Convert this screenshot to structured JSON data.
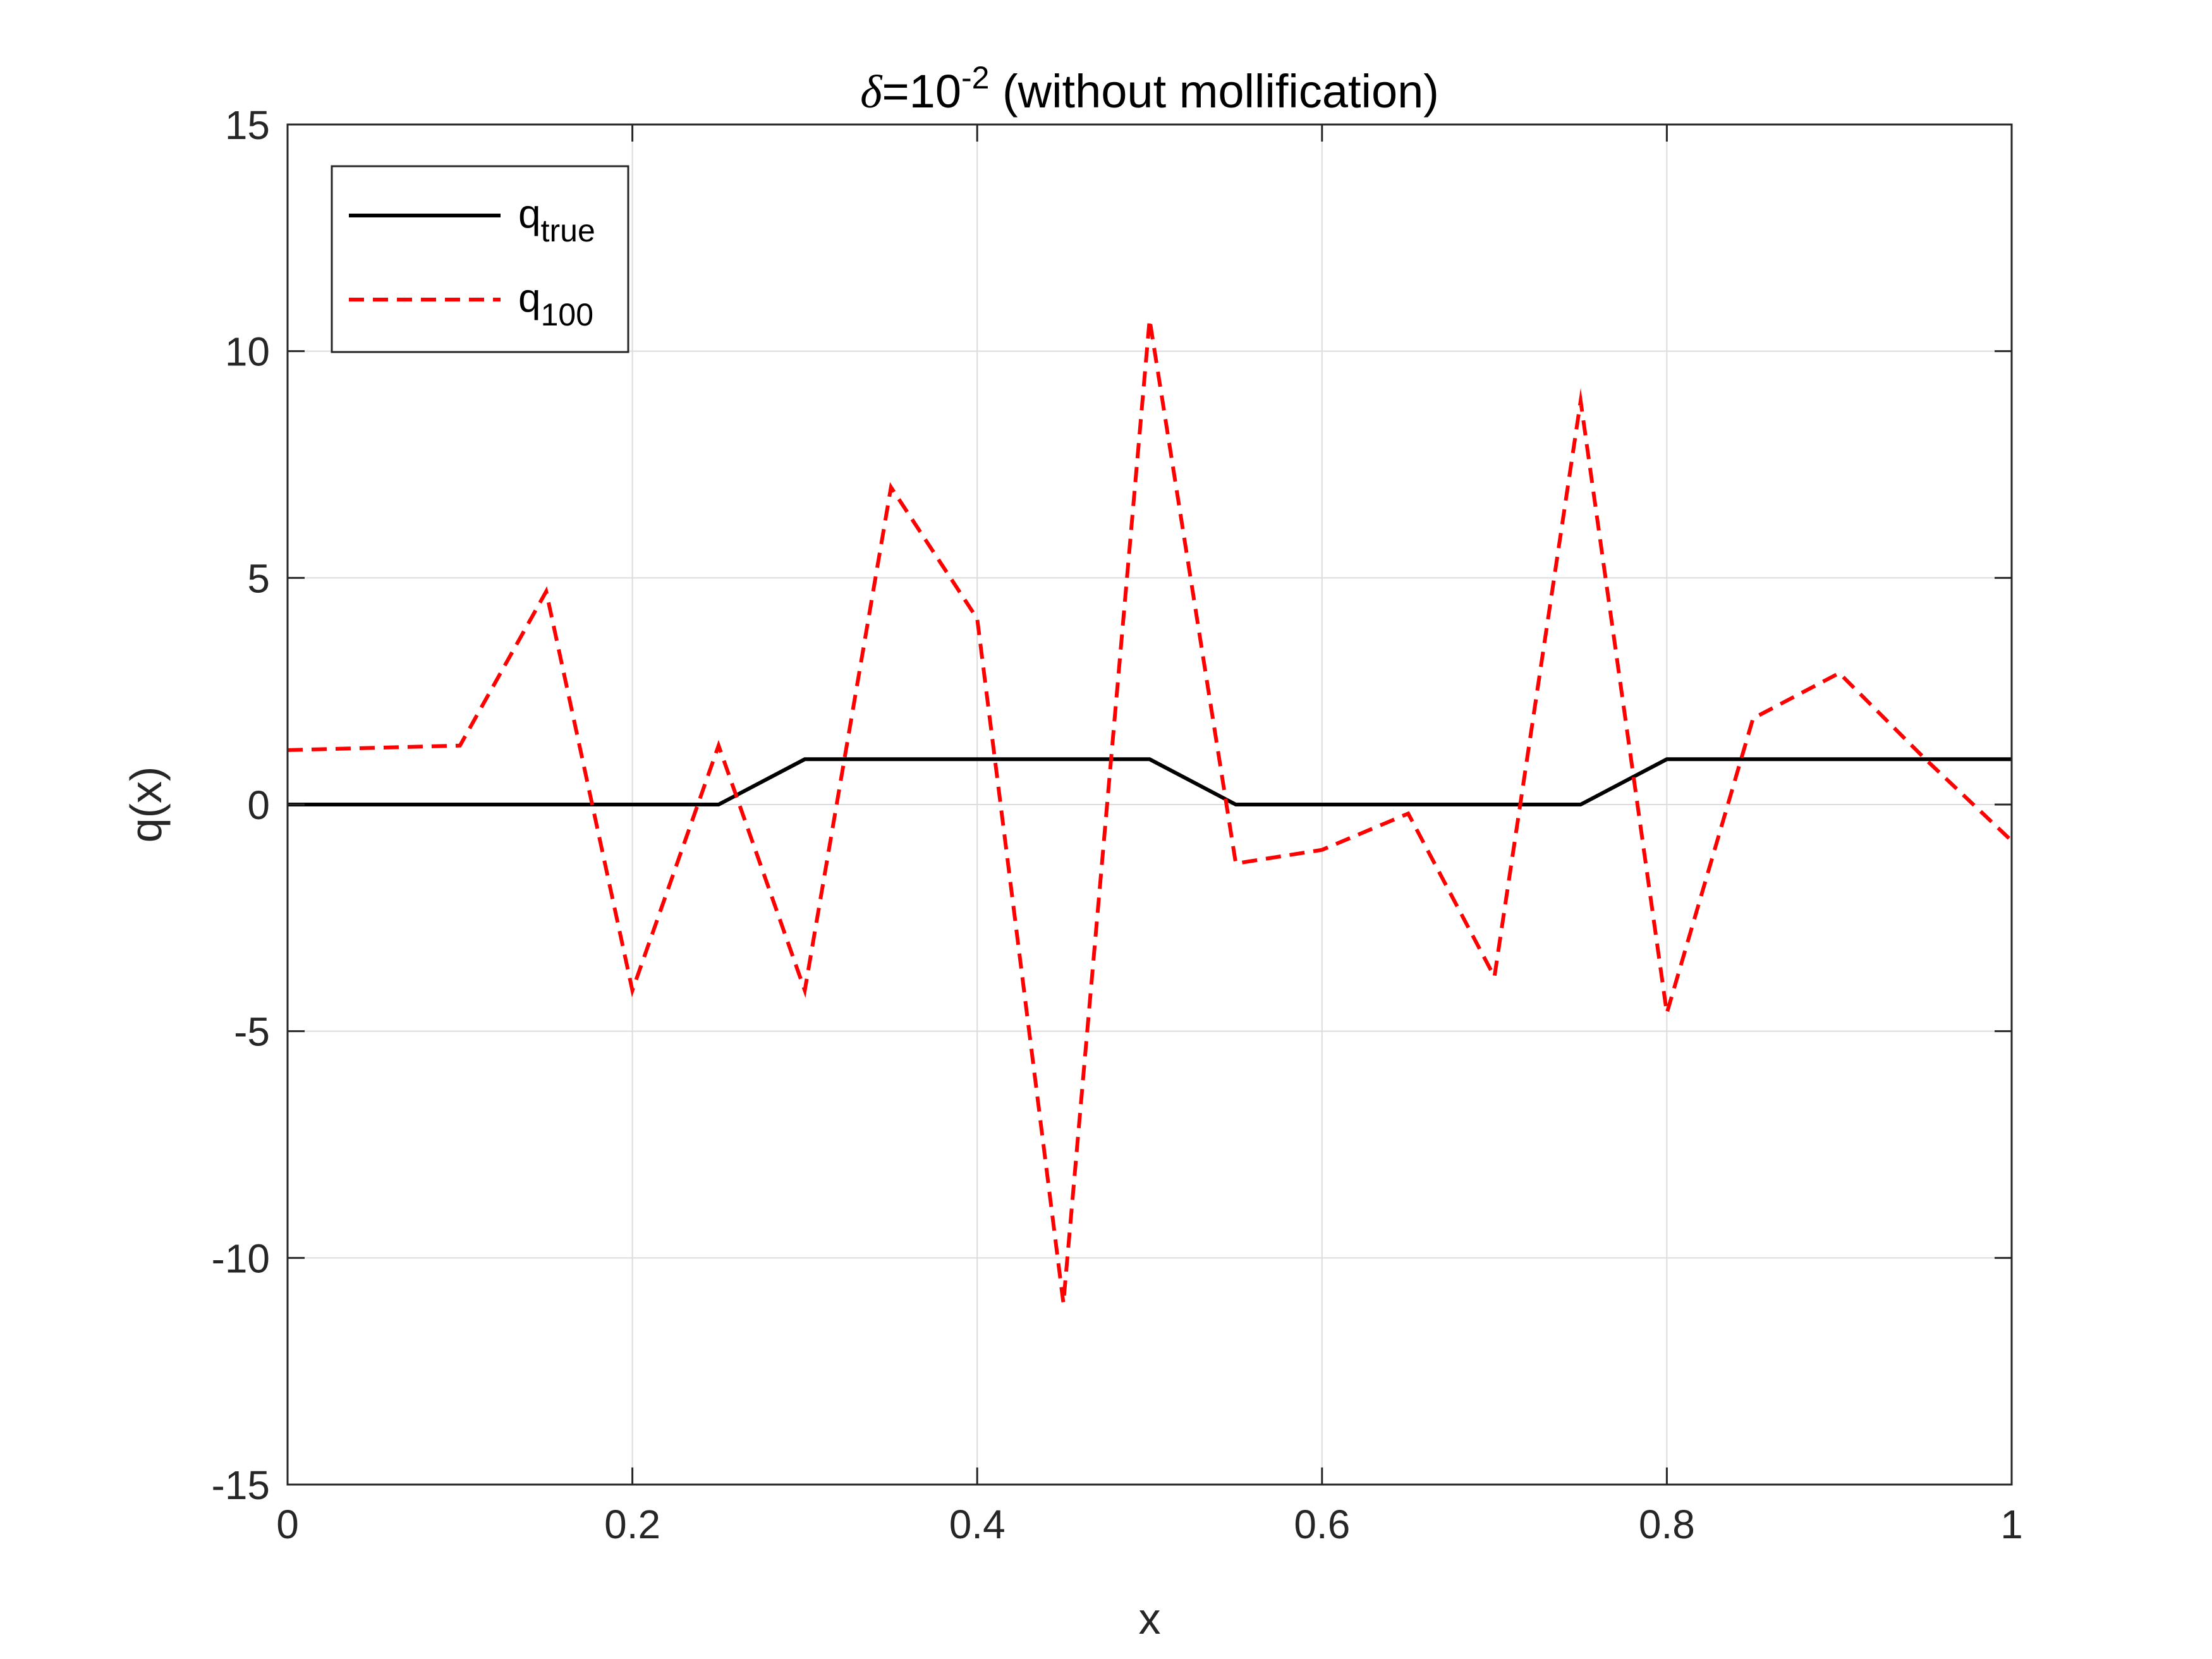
{
  "chart_data": {
    "type": "line",
    "title": {
      "symbol": "δ",
      "prefix": "=10",
      "exponent": "-2",
      "suffix": " (without mollification)"
    },
    "xlabel": "x",
    "ylabel": "q(x)",
    "xlim": [
      0,
      1
    ],
    "ylim": [
      -15,
      15
    ],
    "xticks": [
      0,
      0.2,
      0.4,
      0.6,
      0.8,
      1
    ],
    "xtick_labels": [
      "0",
      "0.2",
      "0.4",
      "0.6",
      "0.8",
      "1"
    ],
    "yticks": [
      -15,
      -10,
      -5,
      0,
      5,
      10,
      15
    ],
    "ytick_labels": [
      "-15",
      "-10",
      "-5",
      "0",
      "5",
      "10",
      "15"
    ],
    "grid": true,
    "legend_position": "top-left",
    "series": [
      {
        "name": "q",
        "name_subscript": "true",
        "color": "#000000",
        "dash": "solid",
        "x": [
          0,
          0.25,
          0.3,
          0.5,
          0.55,
          0.75,
          0.8,
          1
        ],
        "y": [
          0,
          0,
          1,
          1,
          0,
          0,
          1,
          1
        ]
      },
      {
        "name": "q",
        "name_subscript": "100",
        "color": "#ff0000",
        "dash": "dashed",
        "x": [
          0,
          0.1,
          0.15,
          0.2,
          0.25,
          0.3,
          0.35,
          0.4,
          0.45,
          0.5,
          0.55,
          0.6,
          0.65,
          0.7,
          0.75,
          0.8,
          0.85,
          0.9,
          0.95,
          1
        ],
        "y": [
          1.2,
          1.3,
          4.7,
          -4.1,
          1.3,
          -4.1,
          7.0,
          4.1,
          -11.0,
          10.7,
          -1.3,
          -1.0,
          -0.2,
          -3.8,
          8.9,
          -4.6,
          1.9,
          2.9,
          1.0,
          -0.8
        ]
      }
    ]
  }
}
